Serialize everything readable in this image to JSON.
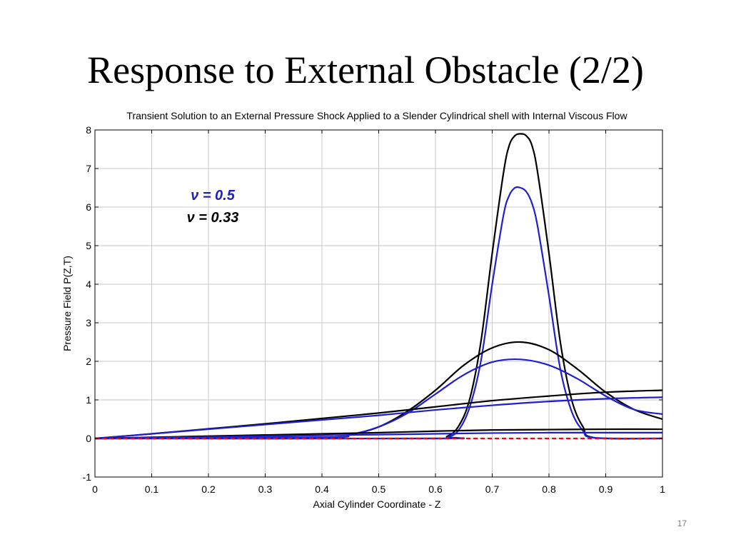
{
  "slide": {
    "title": "Response to External Obstacle (2/2)",
    "page_number": "17"
  },
  "chart_data": {
    "type": "line",
    "title": "Transient Solution to an External Pressure Shock Applied to a Slender Cylindrical shell with Internal Viscous Flow",
    "xlabel": "Axial Cylinder Coordinate - Z",
    "ylabel": "Pressure Field P(Z,T)",
    "xlim": [
      0,
      1
    ],
    "ylim": [
      -1,
      8
    ],
    "xticks": [
      0,
      0.1,
      0.2,
      0.3,
      0.4,
      0.5,
      0.6,
      0.7,
      0.8,
      0.9,
      1
    ],
    "xtick_labels": [
      "0",
      "0.1",
      "0.2",
      "0.3",
      "0.4",
      "0.5",
      "0.6",
      "0.7",
      "0.8",
      "0.9",
      "1"
    ],
    "yticks": [
      -1,
      0,
      1,
      2,
      3,
      4,
      5,
      6,
      7,
      8
    ],
    "ytick_labels": [
      "-1",
      "0",
      "1",
      "2",
      "3",
      "4",
      "5",
      "6",
      "7",
      "8"
    ],
    "grid": true,
    "annotations": [
      {
        "text": "ν = 0.5",
        "color": "#1f1fbf"
      },
      {
        "text": "ν = 0.33",
        "color": "#000000"
      }
    ],
    "series": [
      {
        "group": "black",
        "color": "#000000",
        "x": [
          0,
          0.6,
          0.62,
          0.64,
          0.66,
          0.68,
          0.7,
          0.72,
          0.73,
          0.74,
          0.75,
          0.76,
          0.77,
          0.78,
          0.8,
          0.82,
          0.84,
          0.86,
          0.88,
          1
        ],
        "y": [
          0,
          0,
          0.05,
          0.3,
          1.0,
          2.5,
          4.8,
          6.9,
          7.6,
          7.85,
          7.9,
          7.85,
          7.6,
          6.9,
          4.8,
          2.5,
          1.0,
          0.3,
          0.02,
          0
        ]
      },
      {
        "group": "blue",
        "color": "#1f1fcf",
        "x": [
          0,
          0.6,
          0.62,
          0.64,
          0.66,
          0.68,
          0.7,
          0.72,
          0.73,
          0.74,
          0.75,
          0.76,
          0.77,
          0.78,
          0.8,
          0.82,
          0.84,
          0.86,
          0.88,
          1
        ],
        "y": [
          0,
          0,
          0.03,
          0.2,
          0.8,
          2.0,
          4.0,
          5.8,
          6.3,
          6.5,
          6.5,
          6.4,
          6.1,
          5.5,
          3.7,
          1.8,
          0.7,
          0.2,
          0.02,
          0
        ]
      },
      {
        "group": "black",
        "color": "#000000",
        "x": [
          0,
          0.4,
          0.45,
          0.5,
          0.55,
          0.6,
          0.65,
          0.7,
          0.75,
          0.8,
          0.85,
          0.9,
          0.95,
          1
        ],
        "y": [
          0,
          0.03,
          0.1,
          0.3,
          0.7,
          1.25,
          1.9,
          2.35,
          2.5,
          2.3,
          1.8,
          1.2,
          0.75,
          0.5
        ]
      },
      {
        "group": "blue",
        "color": "#1f1fcf",
        "x": [
          0,
          0.4,
          0.45,
          0.5,
          0.55,
          0.6,
          0.65,
          0.7,
          0.75,
          0.8,
          0.85,
          0.9,
          0.95,
          1
        ],
        "y": [
          0,
          0.03,
          0.1,
          0.3,
          0.65,
          1.15,
          1.65,
          1.98,
          2.05,
          1.9,
          1.55,
          1.1,
          0.75,
          0.63
        ]
      },
      {
        "group": "black",
        "color": "#000000",
        "x": [
          0,
          0.1,
          0.2,
          0.3,
          0.4,
          0.5,
          0.6,
          0.7,
          0.8,
          0.9,
          1
        ],
        "y": [
          0,
          0.12,
          0.25,
          0.38,
          0.52,
          0.66,
          0.82,
          0.98,
          1.1,
          1.2,
          1.25
        ]
      },
      {
        "group": "blue",
        "color": "#1f1fcf",
        "x": [
          0,
          0.1,
          0.2,
          0.3,
          0.4,
          0.5,
          0.6,
          0.7,
          0.8,
          0.9,
          1
        ],
        "y": [
          0,
          0.12,
          0.24,
          0.36,
          0.48,
          0.6,
          0.74,
          0.86,
          0.96,
          1.03,
          1.07
        ]
      },
      {
        "group": "black",
        "color": "#000000",
        "x": [
          0,
          0.1,
          0.2,
          0.3,
          0.4,
          0.5,
          0.6,
          0.7,
          0.8,
          0.9,
          1
        ],
        "y": [
          0,
          0.03,
          0.06,
          0.09,
          0.12,
          0.15,
          0.19,
          0.22,
          0.23,
          0.24,
          0.24
        ]
      },
      {
        "group": "blue",
        "color": "#1f1fcf",
        "x": [
          0,
          0.1,
          0.2,
          0.3,
          0.4,
          0.5,
          0.6,
          0.7,
          0.8,
          0.9,
          1
        ],
        "y": [
          0,
          0.02,
          0.04,
          0.06,
          0.08,
          0.1,
          0.12,
          0.14,
          0.15,
          0.15,
          0.15
        ]
      },
      {
        "group": "reference",
        "color": "#ff0000",
        "dashed": true,
        "x": [
          0,
          1
        ],
        "y": [
          0,
          0
        ]
      }
    ]
  }
}
